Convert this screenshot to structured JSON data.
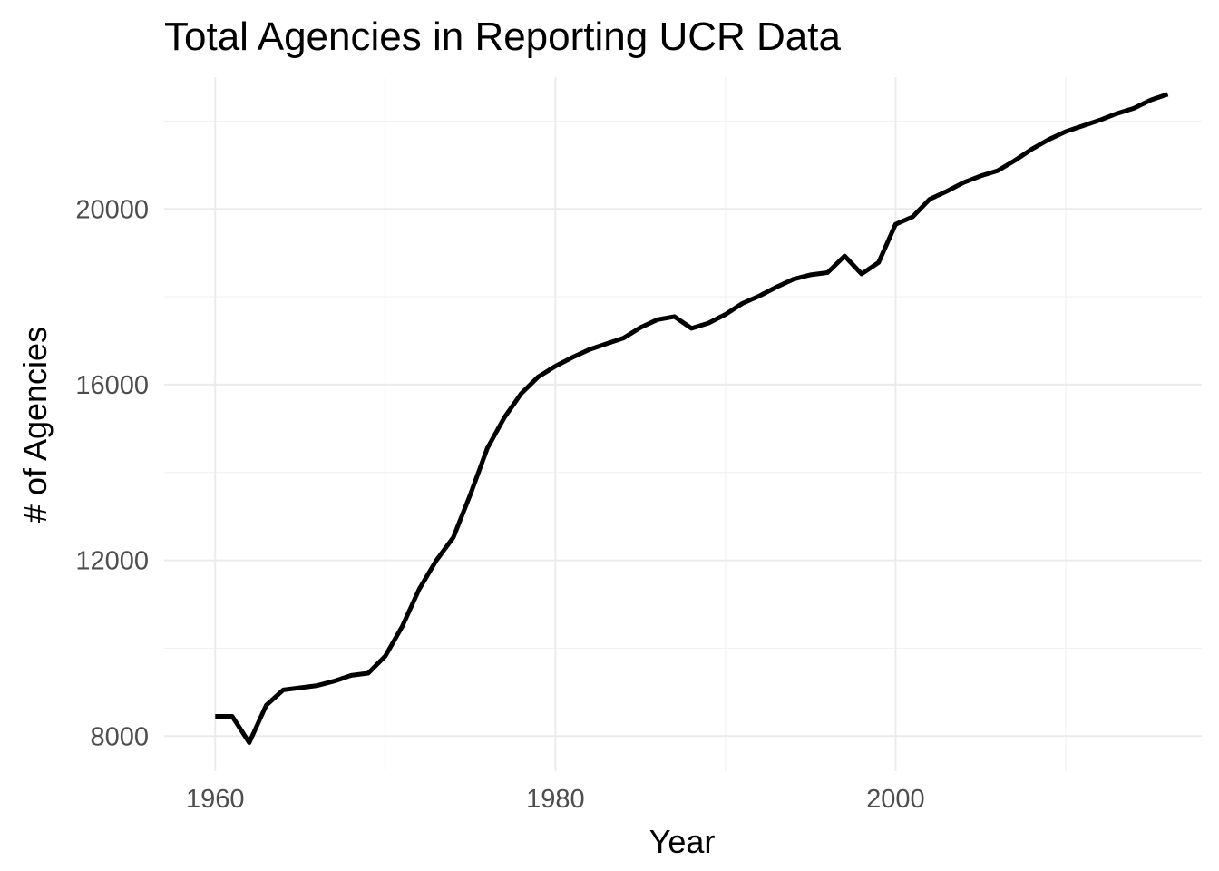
{
  "chart_data": {
    "type": "line",
    "title": "Total Agencies in Reporting UCR Data",
    "xlabel": "Year",
    "ylabel": "# of Agencies",
    "xlim": [
      1957,
      2018
    ],
    "ylim": [
      7200,
      23000
    ],
    "x_major_ticks": [
      1960,
      1980,
      2000
    ],
    "x_minor_ticks": [
      1970,
      1990,
      2010
    ],
    "y_major_ticks": [
      8000,
      12000,
      16000,
      20000
    ],
    "y_minor_ticks": [
      10000,
      14000,
      18000,
      22000
    ],
    "x_tick_labels": [
      "1960",
      "1980",
      "2000"
    ],
    "y_tick_labels": [
      "8000",
      "12000",
      "16000",
      "20000"
    ],
    "grid": true,
    "legend": "none",
    "line_color": "#000000",
    "series": [
      {
        "x": [
          1960,
          1961,
          1962,
          1963,
          1964,
          1965,
          1966,
          1967,
          1968,
          1969,
          1970,
          1971,
          1972,
          1973,
          1974,
          1975,
          1976,
          1977,
          1978,
          1979,
          1980,
          1981,
          1982,
          1983,
          1984,
          1985,
          1986,
          1987,
          1988,
          1989,
          1990,
          1991,
          1992,
          1993,
          1994,
          1995,
          1996,
          1997,
          1998,
          1999,
          2000,
          2001,
          2002,
          2003,
          2004,
          2005,
          2006,
          2007,
          2008,
          2009,
          2010,
          2011,
          2012,
          2013,
          2014,
          2015,
          2016
        ],
        "values": [
          8450,
          8450,
          7850,
          8700,
          9050,
          9100,
          9150,
          9250,
          9380,
          9430,
          9820,
          10500,
          11350,
          12000,
          12520,
          13500,
          14550,
          15250,
          15800,
          16180,
          16420,
          16620,
          16800,
          16930,
          17060,
          17300,
          17480,
          17550,
          17280,
          17400,
          17600,
          17850,
          18020,
          18220,
          18400,
          18500,
          18550,
          18930,
          18520,
          18780,
          19650,
          19820,
          20220,
          20400,
          20600,
          20750,
          20870,
          21100,
          21360,
          21580,
          21760,
          21890,
          22020,
          22170,
          22290,
          22480,
          22610
        ]
      }
    ]
  }
}
